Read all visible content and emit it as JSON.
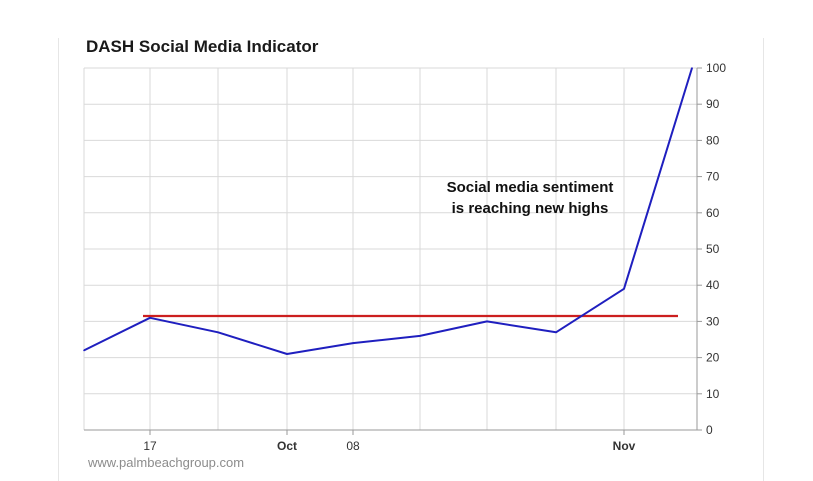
{
  "chart_data": {
    "type": "line",
    "title": "DASH Social Media Indicator",
    "xlabel": "",
    "ylabel": "",
    "ylim": [
      0,
      100
    ],
    "yticks": [
      0,
      10,
      20,
      30,
      40,
      50,
      60,
      70,
      80,
      90,
      100
    ],
    "x_ticks": [
      {
        "label": "17",
        "bold": false
      },
      {
        "label": "Oct",
        "bold": true
      },
      {
        "label": "08",
        "bold": false
      },
      {
        "label": "Nov",
        "bold": true
      }
    ],
    "series": [
      {
        "color": "#1f1fbf",
        "values": [
          22,
          31,
          27,
          21,
          24,
          26,
          30,
          27,
          39,
          100
        ]
      }
    ],
    "reference_line": {
      "value": 31.5,
      "color": "#cc1f1f"
    },
    "annotation": [
      "Social media sentiment",
      "is reaching new highs"
    ],
    "grid": true,
    "legend": "none"
  },
  "footer": {
    "source": "www.palmbeachgroup.com"
  }
}
